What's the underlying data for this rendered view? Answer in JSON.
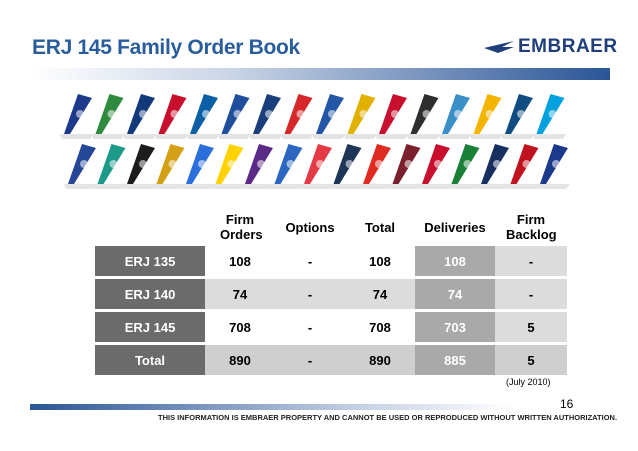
{
  "slide": {
    "title": "ERJ 145 Family Order Book",
    "logo_text": "EMBRAER",
    "note": "(July 2010)",
    "page_number": "16",
    "footer": "THIS INFORMATION IS EMBRAER PROPERTY AND CANNOT BE USED OR REPRODUCED WITHOUT WRITTEN AUTHORIZATION."
  },
  "table": {
    "headers": [
      "",
      "Firm Orders",
      "Options",
      "Total",
      "Deliveries",
      "Firm Backlog"
    ],
    "rows": [
      {
        "label": "ERJ 135",
        "firm_orders": "108",
        "options": "-",
        "total": "108",
        "deliveries": "108",
        "backlog": "-"
      },
      {
        "label": "ERJ 140",
        "firm_orders": "74",
        "options": "-",
        "total": "74",
        "deliveries": "74",
        "backlog": "-"
      },
      {
        "label": "ERJ 145",
        "firm_orders": "708",
        "options": "-",
        "total": "708",
        "deliveries": "703",
        "backlog": "5"
      },
      {
        "label": "Total",
        "firm_orders": "890",
        "options": "-",
        "total": "890",
        "deliveries": "885",
        "backlog": "5"
      }
    ]
  },
  "tails": {
    "row1_colors": [
      "#1d3a8a",
      "#2e8b3e",
      "#123a7a",
      "#c8102e",
      "#0b5fa5",
      "#1f4e9c",
      "#1a3d7c",
      "#d62828",
      "#2456a6",
      "#e2b100",
      "#c8102e",
      "#2e2e2e",
      "#3a8fc6",
      "#f4b400",
      "#0f4c81",
      "#00a1de"
    ],
    "row2_colors": [
      "#264796",
      "#1d9a8a",
      "#1c1c1c",
      "#d4a017",
      "#2a6fdb",
      "#ffd200",
      "#5b2a86",
      "#2b66c1",
      "#e63946",
      "#1d3557",
      "#e02b20",
      "#7a1f2b",
      "#c8102e",
      "#1a7f37",
      "#17305f",
      "#c1121f",
      "#1d3a8a"
    ]
  }
}
